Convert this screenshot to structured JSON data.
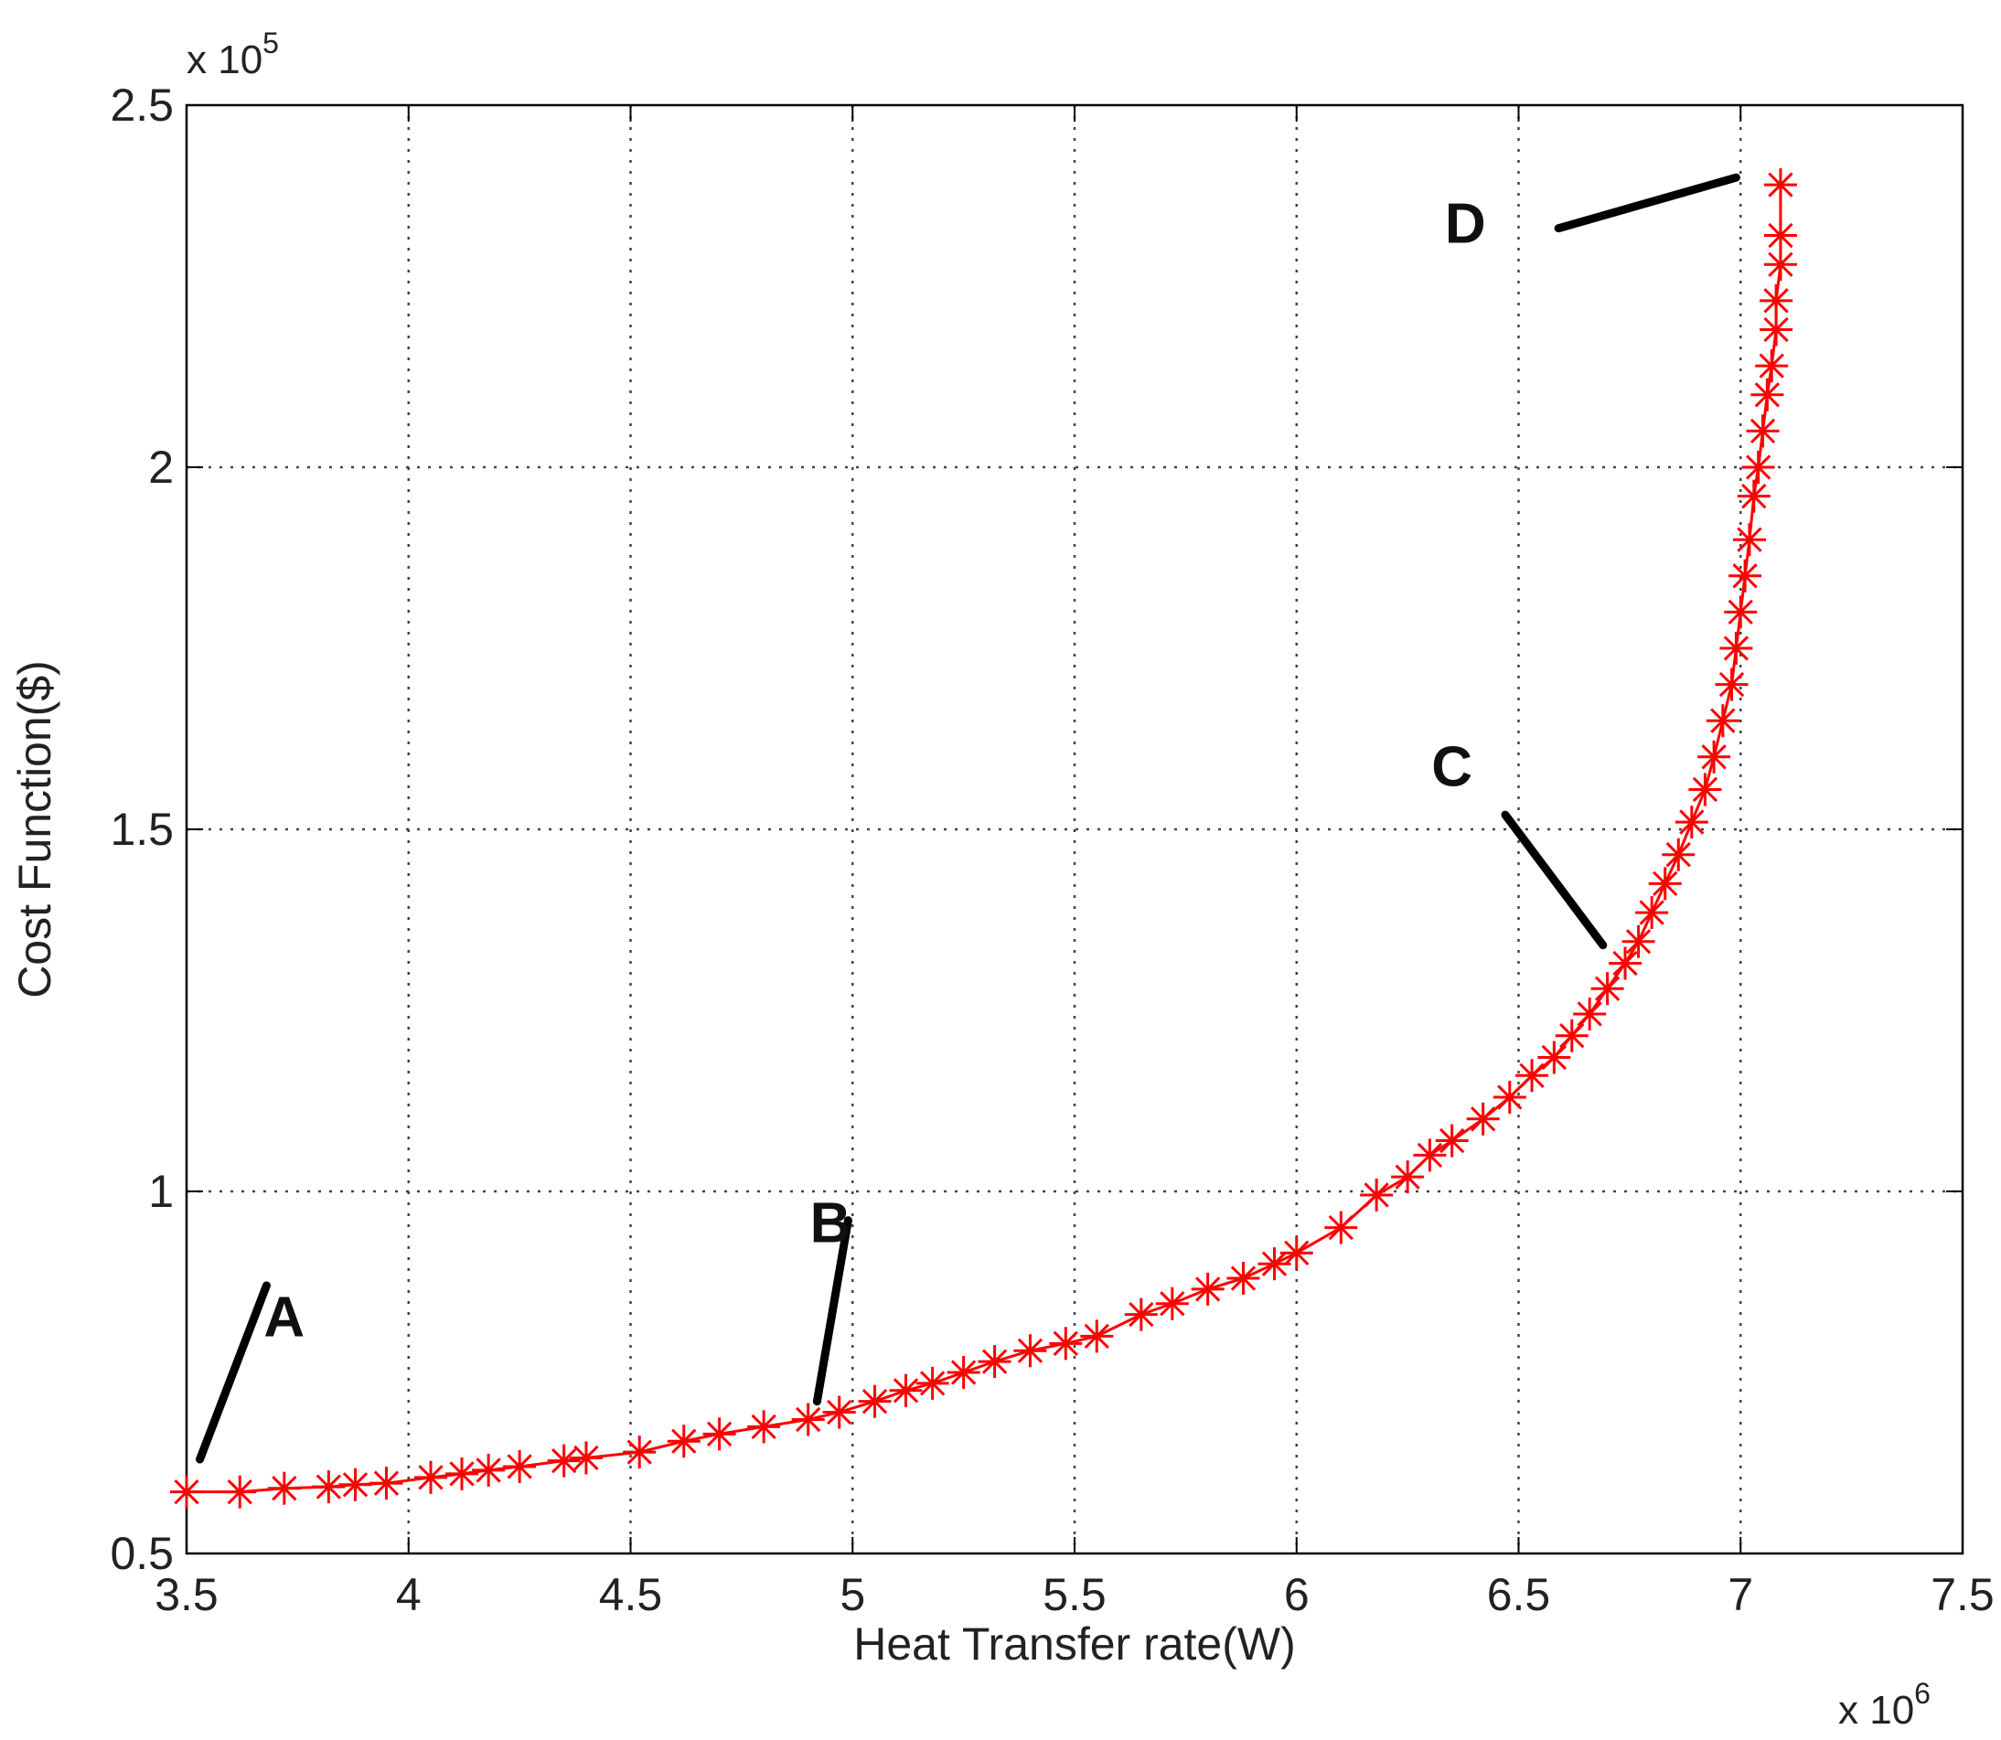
{
  "chart_data": {
    "type": "scatter",
    "xlabel": "Heat Transfer rate(W)",
    "ylabel": "Cost Function($)",
    "x_multiplier": "x 10",
    "x_multiplier_exp": "6",
    "y_multiplier": "x 10",
    "y_multiplier_exp": "5",
    "xlim": [
      3.5,
      7.5
    ],
    "ylim": [
      0.5,
      2.5
    ],
    "x_ticks": [
      "3.5",
      "4",
      "4.5",
      "5",
      "5.5",
      "6",
      "6.5",
      "7",
      "7.5"
    ],
    "y_ticks": [
      "0.5",
      "1",
      "1.5",
      "2",
      "2.5"
    ],
    "grid": true,
    "marker": "asterisk",
    "series_color": "#ff0000",
    "series": [
      {
        "x": [
          3.5,
          3.62,
          3.72,
          3.82,
          3.88,
          3.95,
          4.05,
          4.12,
          4.18,
          4.25,
          4.35,
          4.4,
          4.52,
          4.62,
          4.7,
          4.8,
          4.9,
          4.97,
          5.05,
          5.12,
          5.18,
          5.25,
          5.32,
          5.4,
          5.48,
          5.55,
          5.65,
          5.72,
          5.8,
          5.88,
          5.95,
          6.0,
          6.1,
          6.18,
          6.25,
          6.3,
          6.35,
          6.42,
          6.48,
          6.53,
          6.58,
          6.62,
          6.66,
          6.7,
          6.74,
          6.77,
          6.8,
          6.83,
          6.86,
          6.89,
          6.92,
          6.94,
          6.96,
          6.98,
          6.99,
          7.0,
          7.01,
          7.02,
          7.03,
          7.04,
          7.05,
          7.06,
          7.07,
          7.08,
          7.08,
          7.09,
          7.09,
          7.09
        ],
        "y": [
          0.585,
          0.585,
          0.59,
          0.592,
          0.595,
          0.597,
          0.605,
          0.61,
          0.615,
          0.62,
          0.628,
          0.632,
          0.64,
          0.655,
          0.665,
          0.675,
          0.685,
          0.695,
          0.71,
          0.725,
          0.735,
          0.75,
          0.765,
          0.78,
          0.79,
          0.8,
          0.83,
          0.845,
          0.865,
          0.88,
          0.9,
          0.915,
          0.95,
          0.995,
          1.02,
          1.05,
          1.07,
          1.1,
          1.13,
          1.16,
          1.185,
          1.215,
          1.245,
          1.28,
          1.315,
          1.345,
          1.385,
          1.425,
          1.465,
          1.51,
          1.555,
          1.6,
          1.65,
          1.7,
          1.75,
          1.8,
          1.85,
          1.9,
          1.96,
          2.0,
          2.05,
          2.1,
          2.14,
          2.19,
          2.23,
          2.28,
          2.32,
          2.39
        ]
      }
    ],
    "annotations": [
      {
        "label": "A",
        "x": 3.72,
        "y": 0.8,
        "line": [
          [
            3.53,
            0.63
          ],
          [
            3.68,
            0.87
          ]
        ]
      },
      {
        "label": "B",
        "x": 4.95,
        "y": 0.93,
        "line": [
          [
            4.92,
            0.71
          ],
          [
            4.99,
            0.96
          ]
        ]
      },
      {
        "label": "C",
        "x": 6.35,
        "y": 1.56,
        "line": [
          [
            6.47,
            1.52
          ],
          [
            6.69,
            1.34
          ]
        ]
      },
      {
        "label": "D",
        "x": 6.38,
        "y": 2.31,
        "line": [
          [
            6.59,
            2.33
          ],
          [
            6.99,
            2.4
          ]
        ]
      }
    ]
  }
}
